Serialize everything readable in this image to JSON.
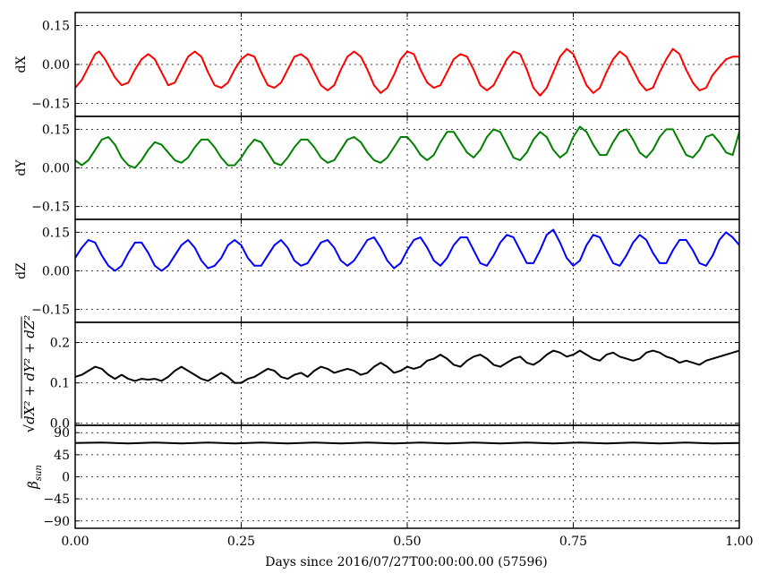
{
  "chart_data": {
    "type": "line",
    "xlabel": "Days since 2016/07/27T00:00:00.00 (57596)",
    "xlim": [
      0.0,
      1.0
    ],
    "xticks": [
      "0.00",
      "0.25",
      "0.50",
      "0.75",
      "1.00"
    ],
    "grid": true,
    "panels": [
      {
        "id": "dx",
        "ylabel": "dX",
        "ylim": [
          -0.2,
          0.2
        ],
        "yticks": [
          "0.15",
          "0.00",
          "−0.15"
        ],
        "color": "#ff0000",
        "series": [
          {
            "x": [
              0.0,
              0.01,
              0.02,
              0.03,
              0.036,
              0.045,
              0.06,
              0.07,
              0.08,
              0.09,
              0.1,
              0.11,
              0.12,
              0.13,
              0.14,
              0.15,
              0.16,
              0.17,
              0.18,
              0.19,
              0.2,
              0.21,
              0.22,
              0.23,
              0.24,
              0.25,
              0.26,
              0.27,
              0.28,
              0.29,
              0.3,
              0.31,
              0.32,
              0.33,
              0.34,
              0.35,
              0.36,
              0.37,
              0.38,
              0.39,
              0.4,
              0.41,
              0.42,
              0.43,
              0.44,
              0.45,
              0.46,
              0.47,
              0.48,
              0.49,
              0.5,
              0.51,
              0.52,
              0.53,
              0.54,
              0.55,
              0.56,
              0.57,
              0.58,
              0.59,
              0.6,
              0.61,
              0.62,
              0.63,
              0.64,
              0.65,
              0.66,
              0.67,
              0.68,
              0.69,
              0.7,
              0.71,
              0.72,
              0.73,
              0.74,
              0.75,
              0.76,
              0.77,
              0.78,
              0.79,
              0.8,
              0.81,
              0.82,
              0.83,
              0.84,
              0.85,
              0.86,
              0.87,
              0.88,
              0.89,
              0.9,
              0.91,
              0.92,
              0.93,
              0.94,
              0.95,
              0.96,
              0.97,
              0.98,
              0.99,
              1.0
            ],
            "y": [
              -0.09,
              -0.06,
              -0.01,
              0.04,
              0.05,
              0.02,
              -0.05,
              -0.08,
              -0.07,
              -0.02,
              0.02,
              0.04,
              0.02,
              -0.03,
              -0.08,
              -0.07,
              -0.02,
              0.03,
              0.05,
              0.03,
              -0.03,
              -0.08,
              -0.09,
              -0.07,
              -0.02,
              0.02,
              0.04,
              0.03,
              -0.03,
              -0.08,
              -0.09,
              -0.07,
              -0.02,
              0.03,
              0.04,
              0.02,
              -0.03,
              -0.08,
              -0.1,
              -0.08,
              -0.02,
              0.03,
              0.05,
              0.03,
              -0.02,
              -0.08,
              -0.11,
              -0.09,
              -0.04,
              0.02,
              0.05,
              0.04,
              -0.02,
              -0.07,
              -0.09,
              -0.08,
              -0.03,
              0.02,
              0.04,
              0.03,
              -0.02,
              -0.08,
              -0.1,
              -0.08,
              -0.03,
              0.02,
              0.05,
              0.04,
              -0.02,
              -0.09,
              -0.12,
              -0.09,
              -0.03,
              0.03,
              0.06,
              0.04,
              -0.02,
              -0.08,
              -0.11,
              -0.09,
              -0.03,
              0.02,
              0.05,
              0.03,
              -0.02,
              -0.07,
              -0.1,
              -0.09,
              -0.03,
              0.02,
              0.06,
              0.04,
              -0.02,
              -0.07,
              -0.1,
              -0.09,
              -0.04,
              -0.01,
              0.02,
              0.03,
              0.03
            ]
          }
        ]
      },
      {
        "id": "dy",
        "ylabel": "dY",
        "ylim": [
          -0.2,
          0.2
        ],
        "yticks": [
          "0.15",
          "0.00",
          "−0.15"
        ],
        "color": "#008000",
        "series": [
          {
            "x": [
              0.0,
              0.01,
              0.02,
              0.03,
              0.04,
              0.05,
              0.06,
              0.07,
              0.08,
              0.09,
              0.1,
              0.11,
              0.12,
              0.13,
              0.14,
              0.15,
              0.16,
              0.17,
              0.18,
              0.19,
              0.2,
              0.21,
              0.22,
              0.23,
              0.24,
              0.25,
              0.26,
              0.27,
              0.28,
              0.29,
              0.3,
              0.31,
              0.32,
              0.33,
              0.34,
              0.35,
              0.36,
              0.37,
              0.38,
              0.39,
              0.4,
              0.41,
              0.42,
              0.43,
              0.44,
              0.45,
              0.46,
              0.47,
              0.48,
              0.49,
              0.5,
              0.51,
              0.52,
              0.53,
              0.54,
              0.55,
              0.56,
              0.57,
              0.58,
              0.59,
              0.6,
              0.61,
              0.62,
              0.63,
              0.64,
              0.65,
              0.66,
              0.67,
              0.68,
              0.69,
              0.7,
              0.71,
              0.72,
              0.73,
              0.74,
              0.75,
              0.76,
              0.77,
              0.78,
              0.79,
              0.8,
              0.81,
              0.82,
              0.83,
              0.84,
              0.85,
              0.86,
              0.87,
              0.88,
              0.89,
              0.9,
              0.91,
              0.92,
              0.93,
              0.94,
              0.95,
              0.96,
              0.97,
              0.98,
              0.99,
              1.0
            ],
            "y": [
              0.03,
              0.01,
              0.03,
              0.07,
              0.11,
              0.12,
              0.09,
              0.04,
              0.01,
              0.0,
              0.03,
              0.07,
              0.1,
              0.09,
              0.06,
              0.03,
              0.02,
              0.04,
              0.08,
              0.11,
              0.11,
              0.08,
              0.04,
              0.01,
              0.01,
              0.04,
              0.08,
              0.11,
              0.1,
              0.06,
              0.02,
              0.01,
              0.04,
              0.08,
              0.11,
              0.11,
              0.08,
              0.04,
              0.02,
              0.03,
              0.07,
              0.11,
              0.12,
              0.1,
              0.06,
              0.03,
              0.02,
              0.04,
              0.08,
              0.12,
              0.12,
              0.09,
              0.05,
              0.03,
              0.05,
              0.1,
              0.14,
              0.14,
              0.1,
              0.06,
              0.04,
              0.07,
              0.12,
              0.15,
              0.14,
              0.09,
              0.04,
              0.03,
              0.06,
              0.11,
              0.14,
              0.12,
              0.07,
              0.04,
              0.06,
              0.12,
              0.16,
              0.14,
              0.09,
              0.05,
              0.05,
              0.1,
              0.14,
              0.15,
              0.11,
              0.06,
              0.04,
              0.07,
              0.12,
              0.15,
              0.15,
              0.1,
              0.05,
              0.04,
              0.07,
              0.12,
              0.13,
              0.1,
              0.06,
              0.05,
              0.14
            ]
          }
        ]
      },
      {
        "id": "dz",
        "ylabel": "dZ",
        "ylim": [
          -0.2,
          0.2
        ],
        "yticks": [
          "0.15",
          "0.00",
          "−0.15"
        ],
        "color": "#0000ff",
        "series": [
          {
            "x": [
              0.0,
              0.01,
              0.02,
              0.03,
              0.04,
              0.05,
              0.06,
              0.07,
              0.08,
              0.09,
              0.1,
              0.11,
              0.12,
              0.13,
              0.14,
              0.15,
              0.16,
              0.17,
              0.18,
              0.19,
              0.2,
              0.21,
              0.22,
              0.23,
              0.24,
              0.25,
              0.26,
              0.27,
              0.28,
              0.29,
              0.3,
              0.31,
              0.32,
              0.33,
              0.34,
              0.35,
              0.36,
              0.37,
              0.38,
              0.39,
              0.4,
              0.41,
              0.42,
              0.43,
              0.44,
              0.45,
              0.46,
              0.47,
              0.48,
              0.49,
              0.5,
              0.51,
              0.52,
              0.53,
              0.54,
              0.55,
              0.56,
              0.57,
              0.58,
              0.59,
              0.6,
              0.61,
              0.62,
              0.63,
              0.64,
              0.65,
              0.66,
              0.67,
              0.68,
              0.69,
              0.7,
              0.71,
              0.72,
              0.73,
              0.74,
              0.75,
              0.76,
              0.77,
              0.78,
              0.79,
              0.8,
              0.81,
              0.82,
              0.83,
              0.84,
              0.85,
              0.86,
              0.87,
              0.88,
              0.89,
              0.9,
              0.91,
              0.92,
              0.93,
              0.94,
              0.95,
              0.96,
              0.97,
              0.98,
              0.99,
              1.0
            ],
            "y": [
              0.05,
              0.09,
              0.12,
              0.11,
              0.06,
              0.02,
              0.0,
              0.02,
              0.07,
              0.11,
              0.11,
              0.07,
              0.02,
              0.0,
              0.02,
              0.06,
              0.1,
              0.12,
              0.09,
              0.04,
              0.01,
              0.02,
              0.05,
              0.1,
              0.12,
              0.1,
              0.05,
              0.02,
              0.02,
              0.06,
              0.1,
              0.12,
              0.09,
              0.04,
              0.02,
              0.03,
              0.07,
              0.11,
              0.12,
              0.09,
              0.04,
              0.02,
              0.04,
              0.08,
              0.12,
              0.13,
              0.09,
              0.04,
              0.01,
              0.03,
              0.08,
              0.12,
              0.13,
              0.09,
              0.04,
              0.02,
              0.05,
              0.1,
              0.13,
              0.13,
              0.08,
              0.03,
              0.02,
              0.06,
              0.11,
              0.14,
              0.13,
              0.08,
              0.03,
              0.03,
              0.08,
              0.14,
              0.16,
              0.11,
              0.05,
              0.02,
              0.04,
              0.1,
              0.14,
              0.13,
              0.08,
              0.03,
              0.02,
              0.06,
              0.11,
              0.14,
              0.12,
              0.07,
              0.03,
              0.03,
              0.08,
              0.12,
              0.12,
              0.08,
              0.03,
              0.02,
              0.06,
              0.12,
              0.15,
              0.13,
              0.1
            ]
          }
        ]
      },
      {
        "id": "magnitude",
        "ylabel": "sqrt(dX^2 + dY^2 + dZ^2)",
        "ylim": [
          -0.005,
          0.25
        ],
        "yticks": [
          "0.2",
          "0.1",
          "0.0"
        ],
        "color": "#000000",
        "series": [
          {
            "x": [
              0.0,
              0.01,
              0.02,
              0.03,
              0.04,
              0.05,
              0.06,
              0.07,
              0.08,
              0.09,
              0.1,
              0.11,
              0.12,
              0.13,
              0.14,
              0.15,
              0.16,
              0.17,
              0.18,
              0.19,
              0.2,
              0.21,
              0.22,
              0.23,
              0.24,
              0.25,
              0.26,
              0.27,
              0.28,
              0.29,
              0.3,
              0.31,
              0.32,
              0.33,
              0.34,
              0.35,
              0.36,
              0.37,
              0.38,
              0.39,
              0.4,
              0.41,
              0.42,
              0.43,
              0.44,
              0.45,
              0.46,
              0.47,
              0.48,
              0.49,
              0.5,
              0.51,
              0.52,
              0.53,
              0.54,
              0.55,
              0.56,
              0.57,
              0.58,
              0.59,
              0.6,
              0.61,
              0.62,
              0.63,
              0.64,
              0.65,
              0.66,
              0.67,
              0.68,
              0.69,
              0.7,
              0.71,
              0.72,
              0.73,
              0.74,
              0.75,
              0.76,
              0.77,
              0.78,
              0.79,
              0.8,
              0.81,
              0.82,
              0.83,
              0.84,
              0.85,
              0.86,
              0.87,
              0.88,
              0.89,
              0.9,
              0.91,
              0.92,
              0.93,
              0.94,
              0.95,
              0.96,
              0.97,
              0.98,
              0.99,
              1.0
            ],
            "y": [
              0.115,
              0.12,
              0.13,
              0.14,
              0.135,
              0.12,
              0.11,
              0.12,
              0.11,
              0.105,
              0.11,
              0.108,
              0.11,
              0.105,
              0.115,
              0.13,
              0.14,
              0.13,
              0.12,
              0.11,
              0.105,
              0.115,
              0.125,
              0.115,
              0.1,
              0.1,
              0.11,
              0.115,
              0.125,
              0.135,
              0.13,
              0.115,
              0.11,
              0.12,
              0.125,
              0.115,
              0.13,
              0.14,
              0.135,
              0.125,
              0.13,
              0.135,
              0.13,
              0.12,
              0.125,
              0.14,
              0.15,
              0.14,
              0.125,
              0.13,
              0.14,
              0.135,
              0.14,
              0.155,
              0.16,
              0.17,
              0.16,
              0.145,
              0.14,
              0.155,
              0.165,
              0.17,
              0.16,
              0.145,
              0.14,
              0.15,
              0.16,
              0.165,
              0.15,
              0.145,
              0.155,
              0.17,
              0.18,
              0.175,
              0.165,
              0.17,
              0.18,
              0.17,
              0.16,
              0.155,
              0.17,
              0.175,
              0.165,
              0.16,
              0.155,
              0.16,
              0.175,
              0.18,
              0.175,
              0.165,
              0.16,
              0.15,
              0.155,
              0.15,
              0.145,
              0.155,
              0.16,
              0.165,
              0.17,
              0.175,
              0.18
            ]
          }
        ]
      },
      {
        "id": "beta",
        "ylabel": "β_sun",
        "ylim": [
          -105,
          105
        ],
        "yticks": [
          "90",
          "45",
          "0",
          "−45",
          "−90"
        ],
        "color": "#000000",
        "series": [
          {
            "x": [
              0.0,
              0.04,
              0.08,
              0.12,
              0.16,
              0.2,
              0.24,
              0.28,
              0.32,
              0.36,
              0.4,
              0.44,
              0.48,
              0.52,
              0.56,
              0.6,
              0.64,
              0.68,
              0.72,
              0.76,
              0.8,
              0.84,
              0.88,
              0.92,
              0.96,
              1.0
            ],
            "y": [
              69,
              70,
              68,
              70,
              68,
              70,
              68,
              70,
              68,
              70,
              68,
              70,
              68,
              70,
              68,
              70,
              68,
              70,
              68,
              70,
              68,
              70,
              68,
              70,
              68,
              69
            ]
          }
        ]
      }
    ]
  }
}
